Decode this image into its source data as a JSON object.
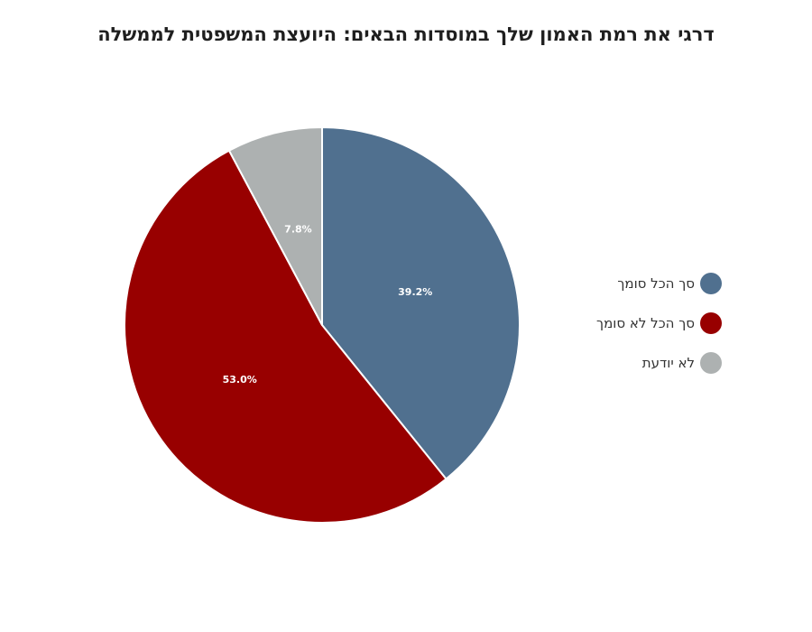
{
  "chart_data": {
    "type": "pie",
    "title": "דרגי את רמת האמון שלך במוסדות הבאים: היועצת המשפטית לממשלה",
    "categories": [
      "סך הכל סומך",
      "סך הכל לא סומך",
      "לא יודעת"
    ],
    "values": [
      39.2,
      53.0,
      7.8
    ],
    "value_labels": [
      "39.2%",
      "53.0%",
      "7.8%"
    ],
    "colors": [
      "#50708f",
      "#980000",
      "#adb1b1"
    ],
    "legend_position": "right"
  }
}
